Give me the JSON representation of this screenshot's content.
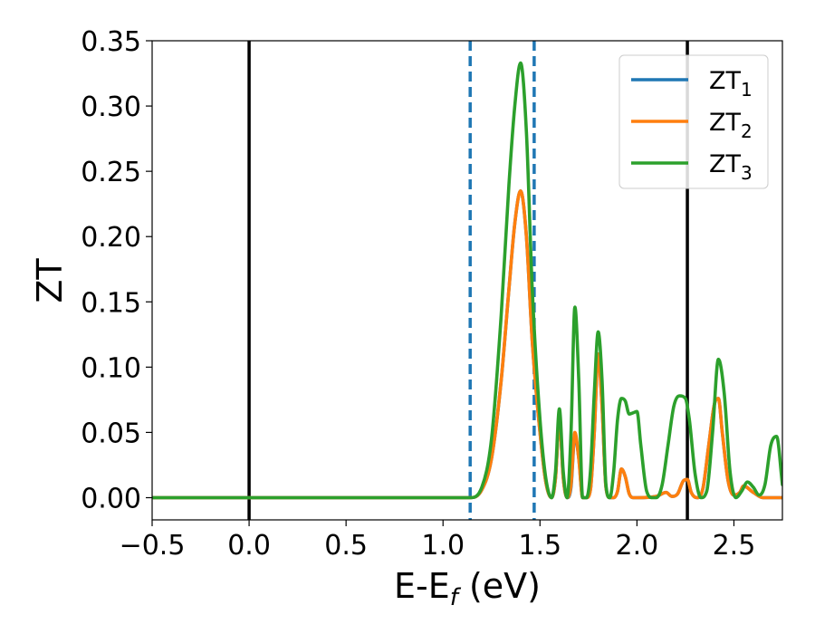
{
  "chart_data": {
    "type": "line",
    "xlabel": {
      "main": "E-E",
      "sub": "f",
      "suffix": " (eV)"
    },
    "ylabel": "ZT",
    "xlim": [
      -0.5,
      2.75
    ],
    "ylim": [
      -0.017,
      0.35
    ],
    "x_ticks": [
      {
        "value": -0.5,
        "label": "−0.5"
      },
      {
        "value": 0.0,
        "label": "0.0"
      },
      {
        "value": 0.5,
        "label": "0.5"
      },
      {
        "value": 1.0,
        "label": "1.0"
      },
      {
        "value": 1.5,
        "label": "1.5"
      },
      {
        "value": 2.0,
        "label": "2.0"
      },
      {
        "value": 2.5,
        "label": "2.5"
      }
    ],
    "y_ticks": [
      {
        "value": 0.0,
        "label": "0.00"
      },
      {
        "value": 0.05,
        "label": "0.05"
      },
      {
        "value": 0.1,
        "label": "0.10"
      },
      {
        "value": 0.15,
        "label": "0.15"
      },
      {
        "value": 0.2,
        "label": "0.20"
      },
      {
        "value": 0.25,
        "label": "0.25"
      },
      {
        "value": 0.3,
        "label": "0.30"
      },
      {
        "value": 0.35,
        "label": "0.35"
      }
    ],
    "grid": false,
    "legend_position": "top-right",
    "vertical_lines": [
      {
        "x": 0.0,
        "style": "solid",
        "color": "#000000"
      },
      {
        "x": 2.26,
        "style": "solid",
        "color": "#000000"
      },
      {
        "x": 1.14,
        "style": "dashed",
        "color": "#1f77b4"
      },
      {
        "x": 1.47,
        "style": "dashed",
        "color": "#1f77b4"
      }
    ],
    "series": [
      {
        "name": "ZT",
        "sub": "1",
        "color": "#1f77b4",
        "x": [
          -0.5,
          1.0,
          1.1,
          1.14,
          1.2,
          1.25,
          1.3,
          1.34,
          1.37,
          1.4,
          1.43,
          1.46,
          1.5,
          1.53,
          1.56,
          1.58,
          1.6,
          1.62,
          1.64,
          1.66,
          1.68,
          1.7,
          1.72,
          1.74,
          1.76,
          1.78,
          1.8,
          1.82,
          1.84,
          1.86,
          1.88,
          1.9,
          1.92,
          1.94,
          1.96,
          1.98,
          2.0,
          2.1,
          2.15,
          2.18,
          2.21,
          2.24,
          2.26,
          2.28,
          2.31,
          2.34,
          2.37,
          2.4,
          2.42,
          2.44,
          2.47,
          2.5,
          2.53,
          2.55,
          2.6,
          2.65,
          2.75
        ],
        "y": [
          0.0,
          0.0,
          0.0,
          0.0,
          0.006,
          0.03,
          0.09,
          0.16,
          0.21,
          0.235,
          0.2,
          0.12,
          0.05,
          0.012,
          0.0,
          0.015,
          0.06,
          0.015,
          0.0,
          0.008,
          0.048,
          0.03,
          0.0,
          0.0,
          0.006,
          0.05,
          0.11,
          0.07,
          0.008,
          0.0,
          0.0,
          0.005,
          0.022,
          0.016,
          0.003,
          0.0,
          0.0,
          0.001,
          0.004,
          0.001,
          0.003,
          0.013,
          0.014,
          0.004,
          0.0,
          0.007,
          0.04,
          0.072,
          0.076,
          0.05,
          0.013,
          0.002,
          0.004,
          0.009,
          0.004,
          0.0,
          0.0
        ]
      },
      {
        "name": "ZT",
        "sub": "2",
        "color": "#ff7f0e",
        "x": [
          -0.5,
          1.0,
          1.1,
          1.14,
          1.2,
          1.25,
          1.3,
          1.34,
          1.37,
          1.4,
          1.43,
          1.46,
          1.5,
          1.53,
          1.56,
          1.58,
          1.6,
          1.62,
          1.64,
          1.66,
          1.68,
          1.7,
          1.72,
          1.74,
          1.76,
          1.78,
          1.8,
          1.82,
          1.84,
          1.86,
          1.88,
          1.9,
          1.92,
          1.94,
          1.96,
          1.98,
          2.0,
          2.1,
          2.15,
          2.18,
          2.21,
          2.24,
          2.26,
          2.28,
          2.31,
          2.34,
          2.37,
          2.4,
          2.42,
          2.44,
          2.47,
          2.5,
          2.53,
          2.55,
          2.6,
          2.65,
          2.75
        ],
        "y": [
          0.0,
          0.0,
          0.0,
          0.0,
          0.006,
          0.03,
          0.09,
          0.16,
          0.21,
          0.235,
          0.2,
          0.12,
          0.05,
          0.012,
          0.0,
          0.015,
          0.06,
          0.015,
          0.0,
          0.01,
          0.05,
          0.03,
          0.0,
          0.0,
          0.006,
          0.05,
          0.11,
          0.07,
          0.008,
          0.0,
          0.0,
          0.005,
          0.022,
          0.016,
          0.003,
          0.0,
          0.0,
          0.001,
          0.004,
          0.001,
          0.003,
          0.013,
          0.014,
          0.004,
          0.0,
          0.007,
          0.04,
          0.072,
          0.076,
          0.05,
          0.013,
          0.002,
          0.004,
          0.009,
          0.004,
          0.0,
          0.0
        ]
      },
      {
        "name": "ZT",
        "sub": "3",
        "color": "#2ca02c",
        "x": [
          -0.5,
          1.0,
          1.1,
          1.14,
          1.2,
          1.25,
          1.3,
          1.34,
          1.37,
          1.4,
          1.43,
          1.46,
          1.5,
          1.53,
          1.56,
          1.58,
          1.6,
          1.62,
          1.64,
          1.66,
          1.68,
          1.7,
          1.72,
          1.74,
          1.76,
          1.78,
          1.8,
          1.82,
          1.84,
          1.86,
          1.88,
          1.9,
          1.92,
          1.94,
          1.96,
          1.98,
          2.0,
          2.02,
          2.05,
          2.08,
          2.1,
          2.13,
          2.16,
          2.19,
          2.22,
          2.25,
          2.27,
          2.3,
          2.33,
          2.36,
          2.39,
          2.42,
          2.45,
          2.48,
          2.51,
          2.54,
          2.57,
          2.6,
          2.63,
          2.66,
          2.69,
          2.72,
          2.75
        ],
        "y": [
          0.0,
          0.0,
          0.0,
          0.0,
          0.008,
          0.045,
          0.14,
          0.24,
          0.3,
          0.333,
          0.28,
          0.16,
          0.06,
          0.015,
          0.0,
          0.02,
          0.068,
          0.02,
          0.0,
          0.05,
          0.146,
          0.09,
          0.0,
          0.0,
          0.02,
          0.08,
          0.127,
          0.09,
          0.01,
          0.0,
          0.02,
          0.06,
          0.076,
          0.074,
          0.064,
          0.065,
          0.066,
          0.04,
          0.005,
          0.0,
          0.0,
          0.01,
          0.04,
          0.07,
          0.078,
          0.076,
          0.06,
          0.018,
          0.0,
          0.005,
          0.05,
          0.106,
          0.08,
          0.02,
          0.0,
          0.005,
          0.012,
          0.008,
          0.002,
          0.01,
          0.04,
          0.047,
          0.01
        ]
      }
    ]
  }
}
